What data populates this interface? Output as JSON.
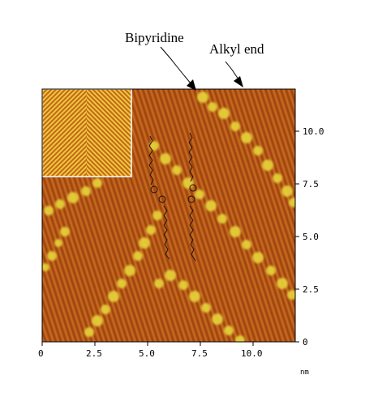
{
  "annotations": {
    "bipyridine": "Bipyridine",
    "alkyl_end": "Alkyl end"
  },
  "axes": {
    "unit": "nm",
    "x_ticks": [
      "0",
      "2.5",
      "5.0",
      "7.5",
      "10.0"
    ],
    "y_ticks": [
      "10.0",
      "7.5",
      "5.0",
      "2.5",
      "0"
    ],
    "range_nm": [
      0,
      12
    ]
  },
  "colors": {
    "substrate_dark": "#a24410",
    "substrate_mid": "#c26f1e",
    "bright_row": "#e8d43a",
    "frame": "#000000"
  },
  "inset": {
    "description_icon": "herringbone-pattern-icon"
  }
}
